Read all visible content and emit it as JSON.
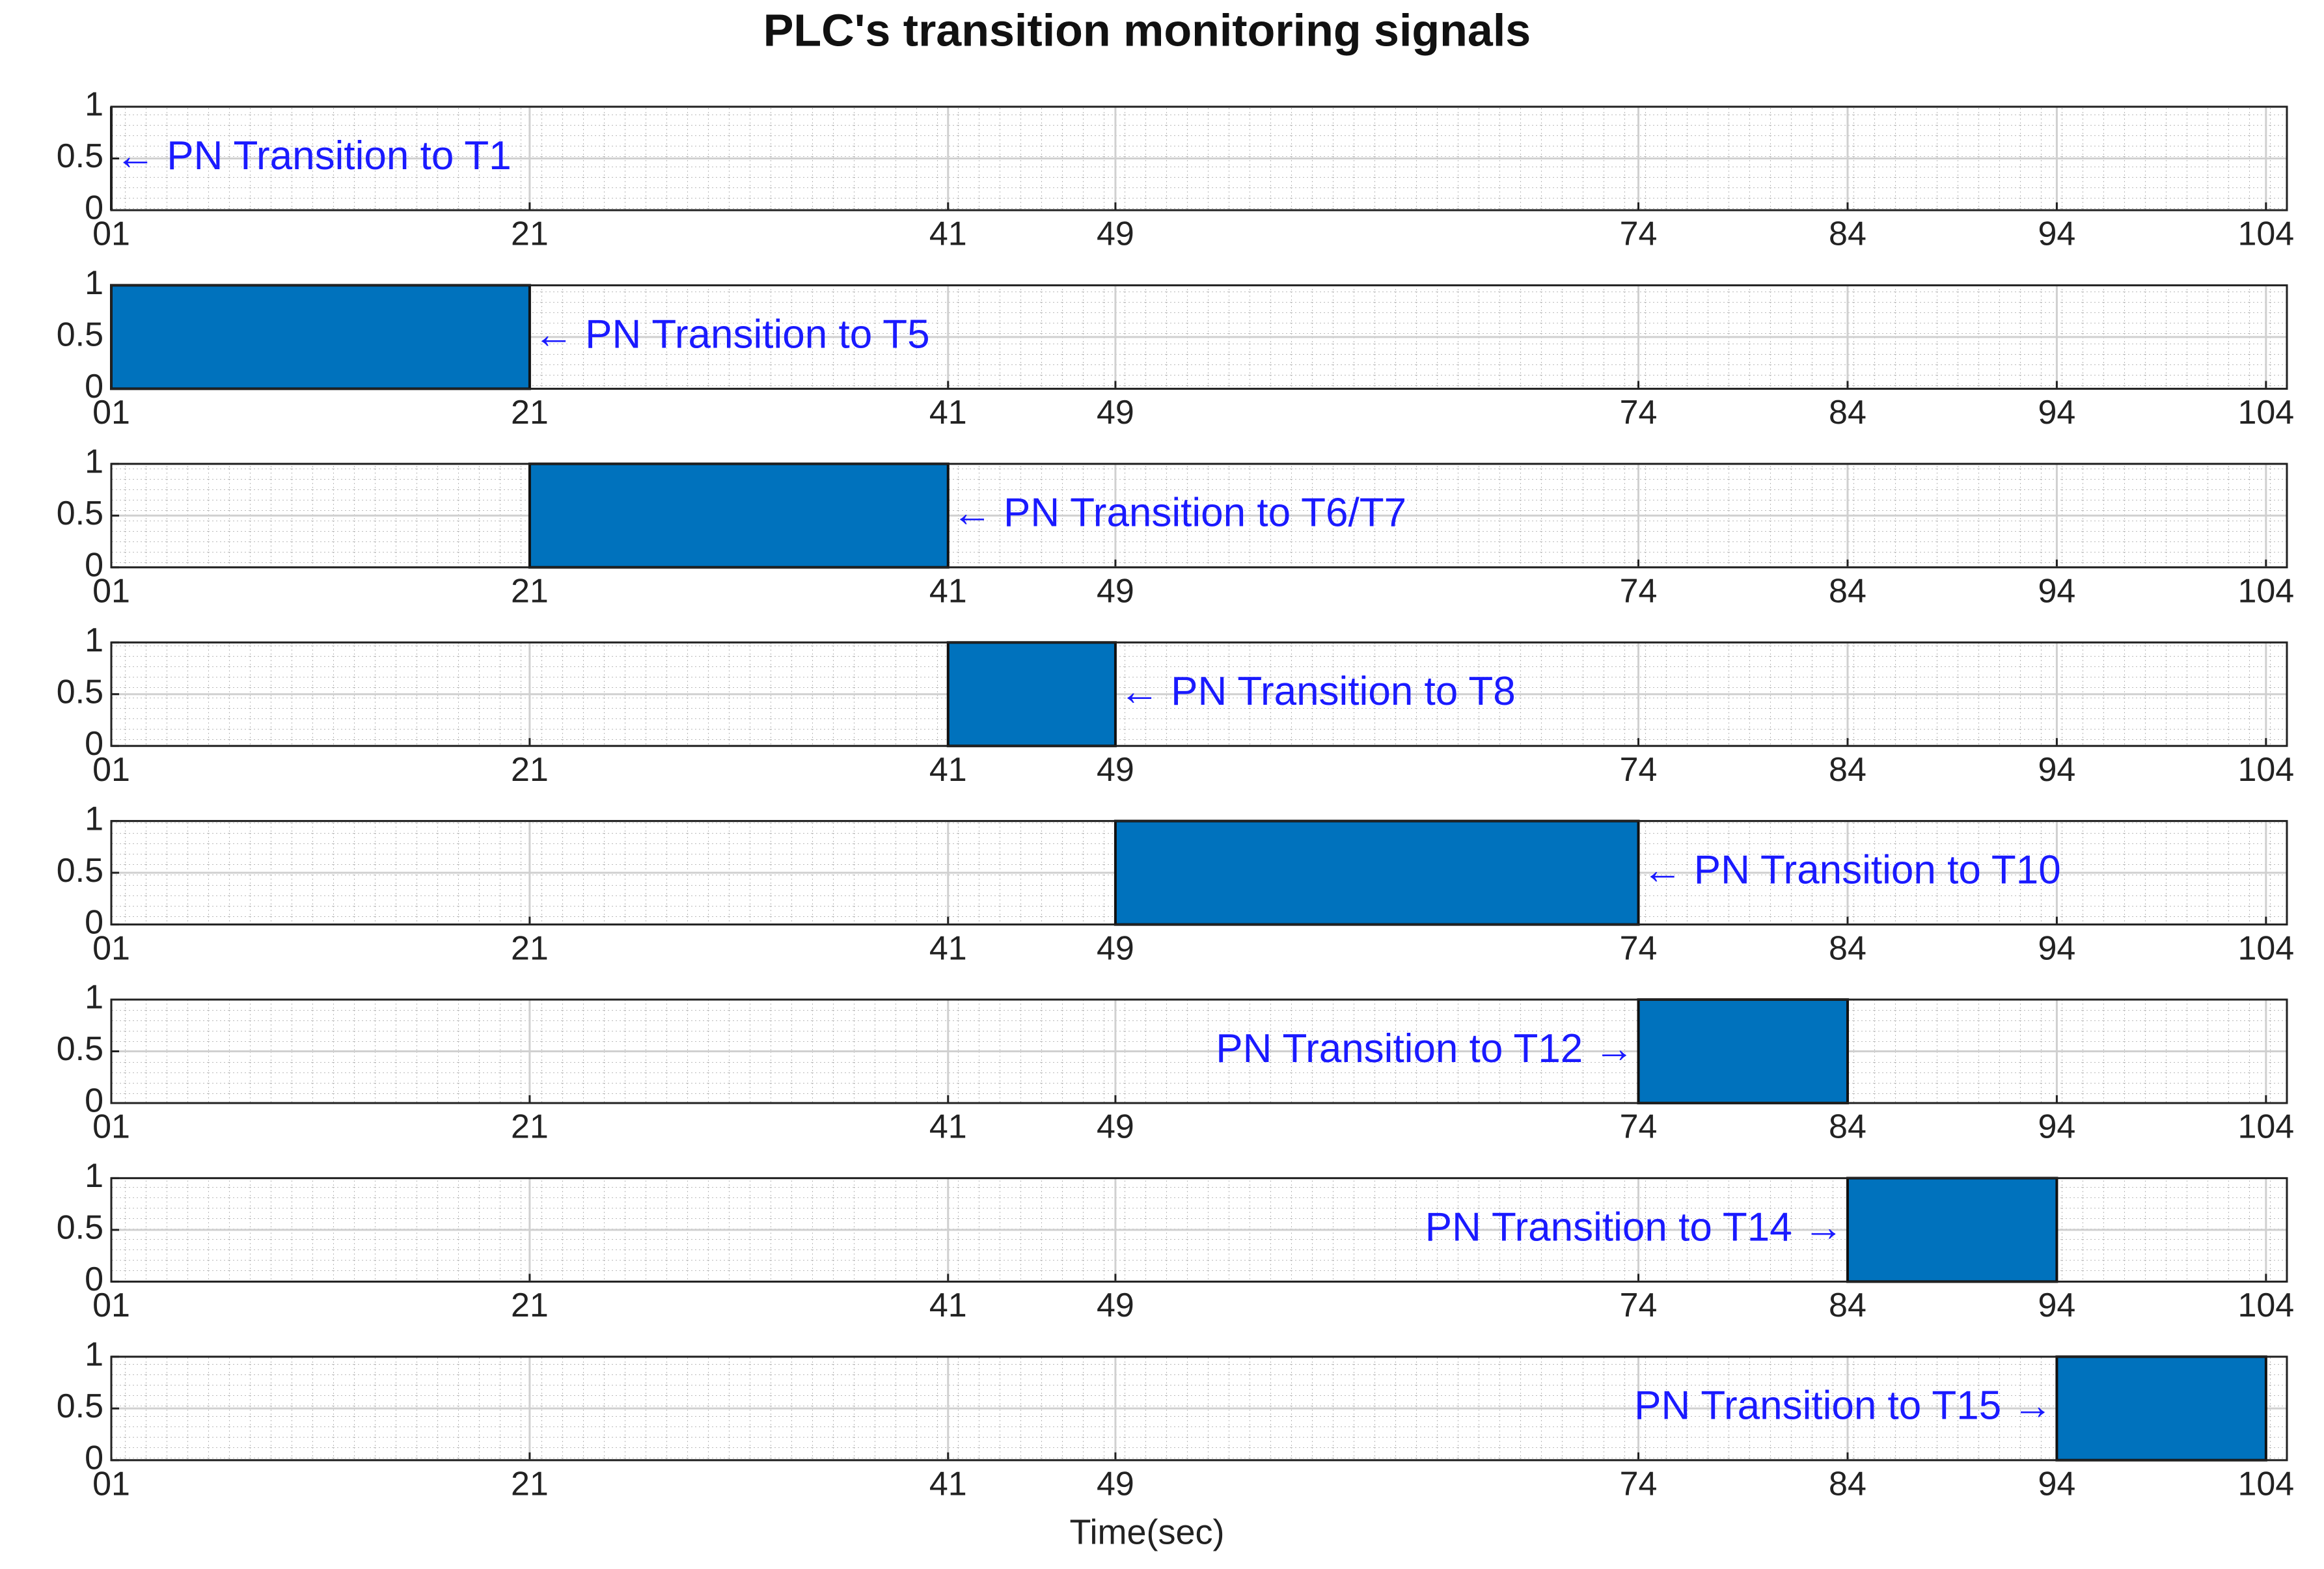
{
  "chart_data": [
    {
      "type": "area",
      "title": "PLC's transition monitoring signals",
      "x": [
        1,
        1
      ],
      "values": [
        1,
        1
      ],
      "color": "#0072bd",
      "annotation": "← PN Transition to T1",
      "xlim": [
        1,
        105
      ],
      "ylim": [
        0,
        1
      ],
      "xticks": [
        {
          "value": 1,
          "label": "01"
        },
        21,
        41,
        49,
        74,
        84,
        94,
        104
      ],
      "yticks": [
        0,
        0.5,
        1
      ],
      "grid": true
    },
    {
      "type": "area",
      "x": [
        1,
        21
      ],
      "values": [
        1,
        1
      ],
      "color": "#0072bd",
      "annotation": "← PN Transition to T5",
      "xlim": [
        1,
        105
      ],
      "ylim": [
        0,
        1
      ],
      "xticks": [
        {
          "value": 1,
          "label": "01"
        },
        21,
        41,
        49,
        74,
        84,
        94,
        104
      ],
      "yticks": [
        0,
        0.5,
        1
      ],
      "grid": true
    },
    {
      "type": "area",
      "x": [
        21,
        41
      ],
      "values": [
        1,
        1
      ],
      "color": "#0072bd",
      "annotation": "← PN Transition to T6/T7",
      "xlim": [
        1,
        105
      ],
      "ylim": [
        0,
        1
      ],
      "xticks": [
        {
          "value": 1,
          "label": "01"
        },
        21,
        41,
        49,
        74,
        84,
        94,
        104
      ],
      "yticks": [
        0,
        0.5,
        1
      ],
      "grid": true
    },
    {
      "type": "area",
      "x": [
        41,
        49
      ],
      "values": [
        1,
        1
      ],
      "color": "#0072bd",
      "annotation": "← PN Transition to T8",
      "xlim": [
        1,
        105
      ],
      "ylim": [
        0,
        1
      ],
      "xticks": [
        {
          "value": 1,
          "label": "01"
        },
        21,
        41,
        49,
        74,
        84,
        94,
        104
      ],
      "yticks": [
        0,
        0.5,
        1
      ],
      "grid": true
    },
    {
      "type": "area",
      "x": [
        49,
        74
      ],
      "values": [
        1,
        1
      ],
      "color": "#0072bd",
      "annotation": "← PN Transition to T10",
      "xlim": [
        1,
        105
      ],
      "ylim": [
        0,
        1
      ],
      "xticks": [
        {
          "value": 1,
          "label": "01"
        },
        21,
        41,
        49,
        74,
        84,
        94,
        104
      ],
      "yticks": [
        0,
        0.5,
        1
      ],
      "grid": true
    },
    {
      "type": "area",
      "x": [
        74,
        84
      ],
      "values": [
        1,
        1
      ],
      "color": "#0072bd",
      "annotation": "PN Transition to T12 →",
      "xlim": [
        1,
        105
      ],
      "ylim": [
        0,
        1
      ],
      "xticks": [
        {
          "value": 1,
          "label": "01"
        },
        21,
        41,
        49,
        74,
        84,
        94,
        104
      ],
      "yticks": [
        0,
        0.5,
        1
      ],
      "grid": true
    },
    {
      "type": "area",
      "x": [
        84,
        94
      ],
      "values": [
        1,
        1
      ],
      "color": "#0072bd",
      "annotation": "PN Transition to T14 →",
      "xlim": [
        1,
        105
      ],
      "ylim": [
        0,
        1
      ],
      "xticks": [
        {
          "value": 1,
          "label": "01"
        },
        21,
        41,
        49,
        74,
        84,
        94,
        104
      ],
      "yticks": [
        0,
        0.5,
        1
      ],
      "grid": true
    },
    {
      "type": "area",
      "x": [
        94,
        104
      ],
      "values": [
        1,
        1
      ],
      "color": "#0072bd",
      "annotation": "PN Transition to T15 →",
      "xlabel": "Time(sec)",
      "xlim": [
        1,
        105
      ],
      "ylim": [
        0,
        1
      ],
      "xticks": [
        {
          "value": 1,
          "label": "01"
        },
        21,
        41,
        49,
        74,
        84,
        94,
        104
      ],
      "yticks": [
        0,
        0.5,
        1
      ],
      "grid": true
    }
  ]
}
